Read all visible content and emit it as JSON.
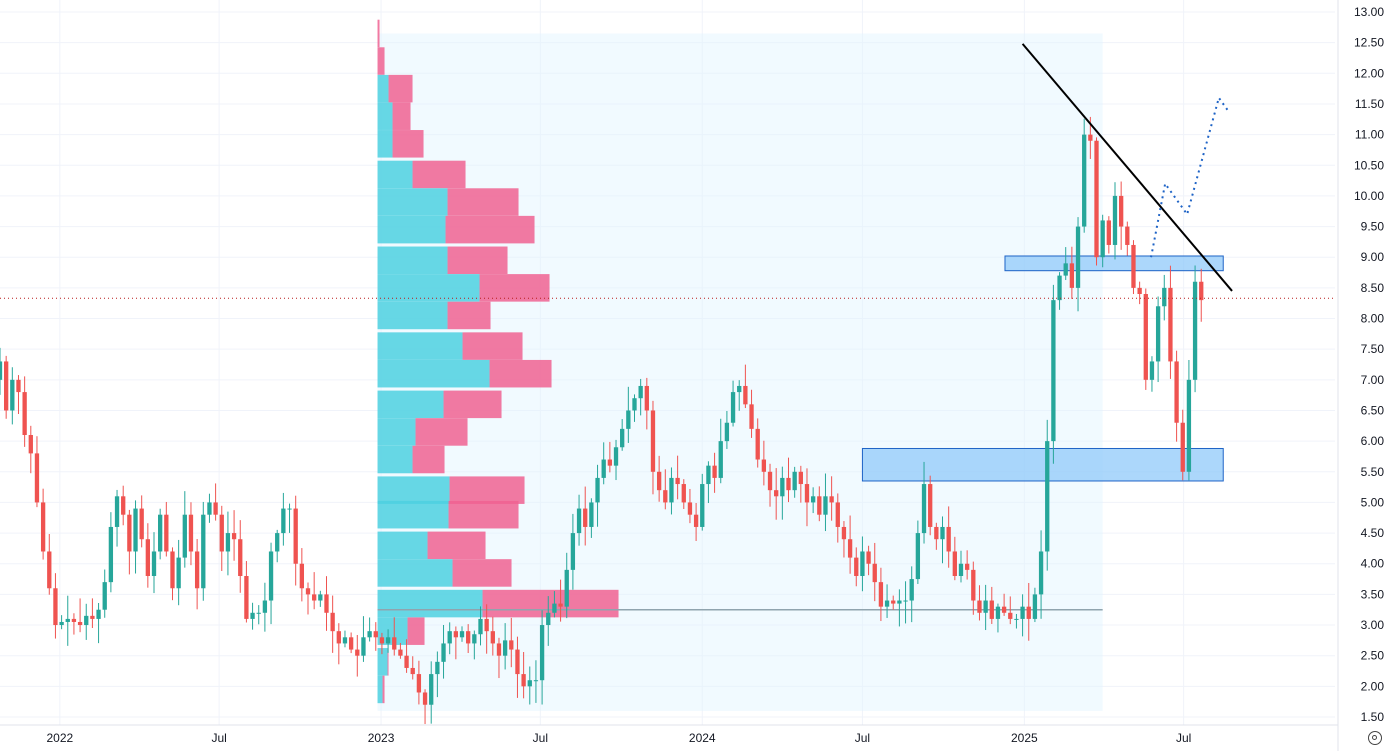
{
  "chart_data": {
    "type": "candlestick",
    "title": "",
    "xlabel": "",
    "ylabel": "",
    "ylim": [
      1.5,
      13.0
    ],
    "grid": true,
    "colors": {
      "up": "#26a69a",
      "down": "#ef5350",
      "vp_up": "#4dd0e1",
      "vp_down": "#f06292",
      "vp_area": "#e1f5fe",
      "zone": "#90caf9",
      "trendline": "#000000",
      "projection": "#1e63c6",
      "poc": "#90a4ae",
      "price_line": "#b71c1c"
    },
    "y_ticks": [
      "13.00",
      "12.50",
      "12.00",
      "11.50",
      "11.00",
      "10.50",
      "10.00",
      "9.50",
      "9.00",
      "8.50",
      "8.00",
      "7.50",
      "7.00",
      "6.50",
      "6.00",
      "5.50",
      "5.00",
      "4.50",
      "4.00",
      "3.50",
      "3.00",
      "2.50",
      "2.00",
      "1.50"
    ],
    "x_ticks": [
      {
        "label": "2022",
        "date": "2022-01-01"
      },
      {
        "label": "Jul",
        "date": "2022-07-01"
      },
      {
        "label": "2023",
        "date": "2023-01-01"
      },
      {
        "label": "Jul",
        "date": "2023-07-01"
      },
      {
        "label": "2024",
        "date": "2024-01-01"
      },
      {
        "label": "Jul",
        "date": "2024-07-01"
      },
      {
        "label": "2025",
        "date": "2025-01-01"
      },
      {
        "label": "Jul",
        "date": "2025-07-01"
      }
    ],
    "x_range": [
      "2021-10-25",
      "2025-12-20"
    ],
    "current_price": 8.33,
    "candle_closes": [
      7.3,
      6.5,
      7.0,
      6.8,
      6.1,
      5.8,
      5.0,
      4.2,
      3.6,
      3.0,
      3.05,
      3.1,
      3.05,
      3.0,
      3.15,
      3.1,
      3.25,
      3.7,
      4.6,
      5.1,
      4.8,
      4.2,
      4.9,
      4.4,
      3.8,
      4.2,
      4.8,
      4.2,
      3.6,
      4.1,
      4.8,
      4.2,
      3.6,
      4.8,
      5.0,
      4.8,
      4.2,
      4.5,
      4.4,
      3.8,
      3.1,
      3.2,
      3.2,
      3.4,
      4.2,
      4.5,
      4.9,
      4.9,
      4.0,
      3.6,
      3.5,
      3.4,
      3.5,
      3.2,
      2.9,
      2.7,
      2.8,
      2.6,
      2.5,
      2.8,
      2.9,
      2.8,
      2.7,
      2.8,
      2.6,
      2.5,
      2.3,
      2.2,
      1.9,
      1.7,
      2.2,
      2.4,
      2.7,
      2.9,
      2.8,
      2.9,
      2.7,
      2.85,
      3.1,
      2.9,
      2.7,
      2.5,
      2.75,
      2.6,
      2.2,
      2.0,
      2.1,
      2.1,
      3.0,
      3.2,
      3.35,
      3.3,
      3.9,
      4.5,
      4.9,
      4.6,
      5.0,
      5.4,
      5.7,
      5.6,
      5.9,
      6.2,
      6.5,
      6.7,
      6.9,
      6.5,
      5.5,
      5.2,
      5.0,
      5.4,
      5.3,
      5.0,
      4.8,
      4.6,
      5.3,
      5.6,
      5.4,
      6.0,
      6.3,
      6.8,
      6.9,
      6.6,
      6.2,
      5.7,
      5.5,
      5.2,
      5.1,
      5.4,
      5.2,
      5.5,
      5.3,
      5.0,
      5.1,
      4.8,
      5.1,
      5.0,
      4.6,
      4.4,
      4.1,
      3.8,
      4.2,
      4.0,
      3.7,
      3.3,
      3.4,
      3.35,
      3.4,
      3.4,
      3.75,
      4.5,
      5.3,
      4.6,
      4.4,
      4.6,
      4.2,
      3.8,
      4.0,
      3.9,
      3.4,
      3.2,
      3.4,
      3.1,
      3.3,
      3.2,
      3.1,
      3.1,
      3.3,
      3.1,
      3.5,
      4.2,
      6.0,
      8.3,
      8.7,
      8.9,
      8.5,
      9.5,
      11.0,
      10.9,
      9.0,
      9.6,
      9.2,
      10.0,
      9.5,
      9.2,
      8.5,
      8.4,
      7.0,
      7.3,
      8.2,
      8.5,
      7.3,
      6.3,
      5.5,
      7.0,
      8.6,
      8.3
    ],
    "volume_profile": [
      {
        "price": 12.65,
        "up": 0,
        "down": 0.2
      },
      {
        "price": 12.2,
        "up": 0,
        "down": 0.7
      },
      {
        "price": 11.75,
        "up": 1.1,
        "down": 2.4
      },
      {
        "price": 11.3,
        "up": 1.5,
        "down": 1.8
      },
      {
        "price": 10.85,
        "up": 1.5,
        "down": 3.1
      },
      {
        "price": 10.35,
        "up": 3.5,
        "down": 5.3
      },
      {
        "price": 9.9,
        "up": 7.0,
        "down": 7.1
      },
      {
        "price": 9.45,
        "up": 6.8,
        "down": 8.9
      },
      {
        "price": 8.95,
        "up": 7.0,
        "down": 6.0
      },
      {
        "price": 8.5,
        "up": 10.2,
        "down": 7.0
      },
      {
        "price": 8.05,
        "up": 7.0,
        "down": 4.3
      },
      {
        "price": 7.55,
        "up": 8.5,
        "down": 6.0
      },
      {
        "price": 7.1,
        "up": 11.2,
        "down": 6.2
      },
      {
        "price": 6.6,
        "up": 6.6,
        "down": 5.8
      },
      {
        "price": 6.15,
        "up": 3.8,
        "down": 5.2
      },
      {
        "price": 5.7,
        "up": 3.5,
        "down": 3.2
      },
      {
        "price": 5.2,
        "up": 7.2,
        "down": 7.5
      },
      {
        "price": 4.8,
        "up": 7.1,
        "down": 7.0
      },
      {
        "price": 4.3,
        "up": 5.0,
        "down": 5.8
      },
      {
        "price": 3.85,
        "up": 7.5,
        "down": 5.9
      },
      {
        "price": 3.35,
        "up": 10.5,
        "down": 13.6
      },
      {
        "price": 2.9,
        "up": 3.0,
        "down": 1.7
      },
      {
        "price": 2.4,
        "up": 1.0,
        "down": 0.1
      },
      {
        "price": 1.95,
        "up": 0.5,
        "down": 0.2
      }
    ],
    "poc_price": 3.25,
    "volume_profile_range": [
      "2022-12-28",
      "2024-12-30",
      "2025-03-31"
    ],
    "zones": [
      {
        "from": "2024-07-01",
        "to": "2025-08-15",
        "low": 5.35,
        "high": 5.88
      },
      {
        "from": "2024-12-10",
        "to": "2025-08-15",
        "low": 8.78,
        "high": 9.02
      }
    ],
    "trendline": [
      {
        "date": "2024-12-30",
        "price": 12.48
      },
      {
        "date": "2025-08-25",
        "price": 8.45
      }
    ],
    "projection": [
      {
        "date": "2025-05-25",
        "price": 9.0
      },
      {
        "date": "2025-06-10",
        "price": 10.2
      },
      {
        "date": "2025-07-05",
        "price": 9.7
      },
      {
        "date": "2025-08-10",
        "price": 11.6
      },
      {
        "date": "2025-08-20",
        "price": 11.4
      }
    ]
  }
}
